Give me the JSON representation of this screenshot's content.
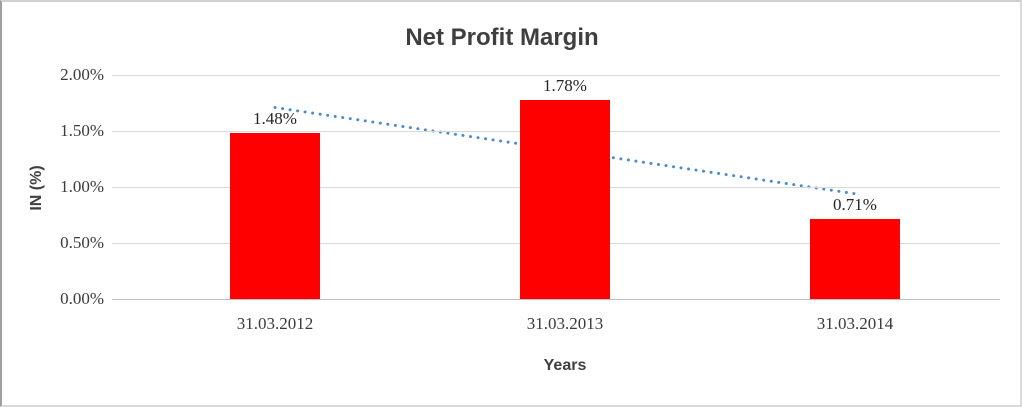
{
  "chart_data": {
    "type": "bar",
    "title": "Net Profit Margin",
    "xlabel": "Years",
    "ylabel": "IN (%)",
    "categories": [
      "31.03.2012",
      "31.03.2013",
      "31.03.2014"
    ],
    "values": [
      1.48,
      1.78,
      0.71
    ],
    "value_labels": [
      "1.48%",
      "1.78%",
      "0.71%"
    ],
    "ylim": [
      0,
      2.0
    ],
    "ytick_labels": [
      "2.00%",
      "1.50%",
      "1.00%",
      "0.50%",
      "0.00%"
    ],
    "grid": true,
    "legend": "none",
    "bar_color": "#FF0000",
    "gridline_color": "#d8d8d8",
    "axis_line_color": "#bfbfbf",
    "trendline": {
      "type": "linear",
      "style": "dotted",
      "color": "#4A8CCB",
      "start_value": 1.71,
      "end_value": 0.94
    }
  }
}
